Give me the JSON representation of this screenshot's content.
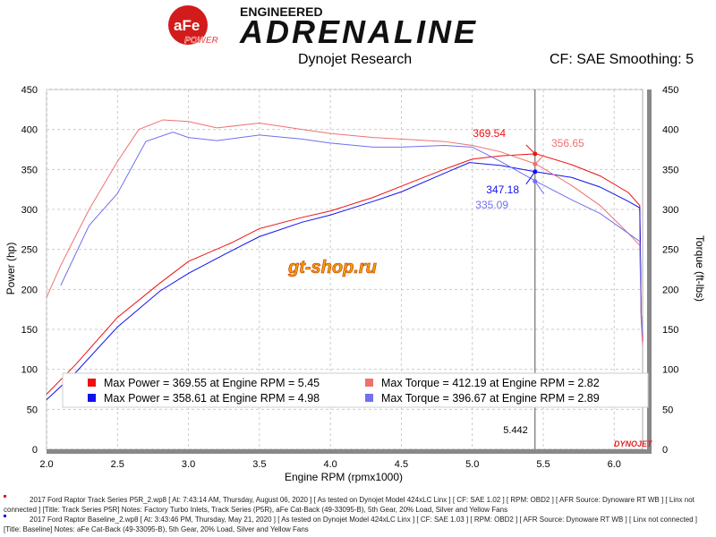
{
  "header": {
    "brand_small": "aFe",
    "brand_power": "POWER",
    "brand_top": "ENGINEERED",
    "brand_main": "ADRENALINE",
    "subtitle": "Dynojet Research",
    "cf_label": "CF: SAE Smoothing: 5",
    "watermark": "gt-shop.ru",
    "dyno_logo": "DYNOJET"
  },
  "chart_data": {
    "type": "line",
    "xlabel": "Engine RPM (rpmx1000)",
    "ylabel": "Power (hp)",
    "y2label": "Torque (ft-lbs)",
    "xlim": [
      2.0,
      6.2
    ],
    "ylim": [
      0,
      450
    ],
    "y2lim": [
      0,
      450
    ],
    "xticks": [
      "2.0",
      "2.5",
      "3.0",
      "3.5",
      "4.0",
      "4.5",
      "5.0",
      "5.5",
      "6.0"
    ],
    "yticks": [
      "0",
      "50",
      "100",
      "150",
      "200",
      "250",
      "300",
      "350",
      "400",
      "450"
    ],
    "grid": true,
    "cursor": {
      "x": 5.442,
      "label": "5.442",
      "annotations": [
        {
          "series": 0,
          "value": 369.54,
          "label": "369.54"
        },
        {
          "series": 2,
          "value": 356.65,
          "label": "356.65"
        },
        {
          "series": 1,
          "value": 347.18,
          "label": "347.18"
        },
        {
          "series": 3,
          "value": 335.09,
          "label": "335.09"
        }
      ]
    },
    "series": [
      {
        "name": "Max Power = 369.55 at Engine RPM = 5.45",
        "color": "#ee1111",
        "x": [
          2.0,
          2.2,
          2.5,
          2.8,
          3.0,
          3.3,
          3.5,
          3.8,
          4.0,
          4.3,
          4.5,
          4.8,
          5.0,
          5.2,
          5.45,
          5.7,
          5.9,
          6.1,
          6.18,
          6.19,
          6.2
        ],
        "y": [
          69,
          105,
          165,
          208,
          235,
          258,
          276,
          290,
          298,
          315,
          329,
          350,
          363,
          367,
          369.5,
          356,
          342,
          321,
          305,
          170,
          140
        ]
      },
      {
        "name": "Max Power = 358.61 at Engine RPM = 4.98",
        "color": "#1111ee",
        "x": [
          2.0,
          2.2,
          2.5,
          2.8,
          3.0,
          3.3,
          3.5,
          3.8,
          4.0,
          4.3,
          4.5,
          4.8,
          4.98,
          5.2,
          5.45,
          5.7,
          5.9,
          6.1,
          6.18,
          6.19,
          6.2
        ],
        "y": [
          62,
          95,
          153,
          198,
          220,
          248,
          266,
          284,
          293,
          310,
          322,
          345,
          358.6,
          355,
          347,
          340,
          328,
          310,
          302,
          165,
          135
        ]
      },
      {
        "name": "Max Torque = 412.19 at Engine RPM = 2.82",
        "color": "#f07070",
        "x": [
          2.0,
          2.1,
          2.3,
          2.5,
          2.65,
          2.82,
          3.0,
          3.2,
          3.5,
          3.8,
          4.0,
          4.3,
          4.5,
          4.8,
          5.0,
          5.2,
          5.45,
          5.7,
          5.9,
          6.1,
          6.18,
          6.19,
          6.2
        ],
        "y": [
          190,
          230,
          300,
          360,
          400,
          412,
          410,
          402,
          408,
          400,
          395,
          390,
          388,
          385,
          380,
          372,
          356.7,
          330,
          305,
          270,
          255,
          160,
          130
        ]
      },
      {
        "name": "Max Torque = 396.67 at Engine RPM = 2.89",
        "color": "#7070f0",
        "x": [
          2.1,
          2.3,
          2.5,
          2.7,
          2.89,
          3.0,
          3.2,
          3.5,
          3.8,
          4.0,
          4.3,
          4.5,
          4.8,
          5.0,
          5.2,
          5.45,
          5.7,
          5.9,
          6.1,
          6.18,
          6.19,
          6.2
        ],
        "y": [
          205,
          280,
          320,
          385,
          396.7,
          390,
          386,
          393,
          388,
          383,
          378,
          378,
          380,
          378,
          360,
          335,
          312,
          295,
          270,
          260,
          170,
          145
        ]
      }
    ]
  },
  "footer": [
    {
      "line1": "2017 Ford Raptor Track Series P5R_2.wp8 [ At: 7:43:14 AM, Thursday, August 06, 2020 ] [ As tested on Dynojet Model 424xLC Linx ] [ CF: SAE 1.02 ] [ RPM: OBD2 ] [ AFR Source: Dynoware RT WB ] [ Linx not connected ] [Title:",
      "line2": "Track Series P5R]  Notes: Factory Turbo Inlets, Track Series (P5R), aFe Cat-Back (49-33095-B), 5th Gear, 20% Load, Silver and Yellow Fans",
      "color": "#ee1111"
    },
    {
      "line1": "2017 Ford Raptor Baseline_2.wp8 [ At: 3:43:46 PM, Thursday, May 21, 2020 ] [ As tested on Dynojet Model 424xLC Linx ] [ CF: SAE 1.03 ] [ RPM: OBD2 ] [ AFR Source: Dynoware RT WB ] [ Linx not connected ] [Title: Baseline]",
      "line2": "Notes: aFe Cat-Back (49-33095-B), 5th Gear, 20% Load, Silver and Yellow Fans",
      "color": "#1111ee"
    }
  ]
}
